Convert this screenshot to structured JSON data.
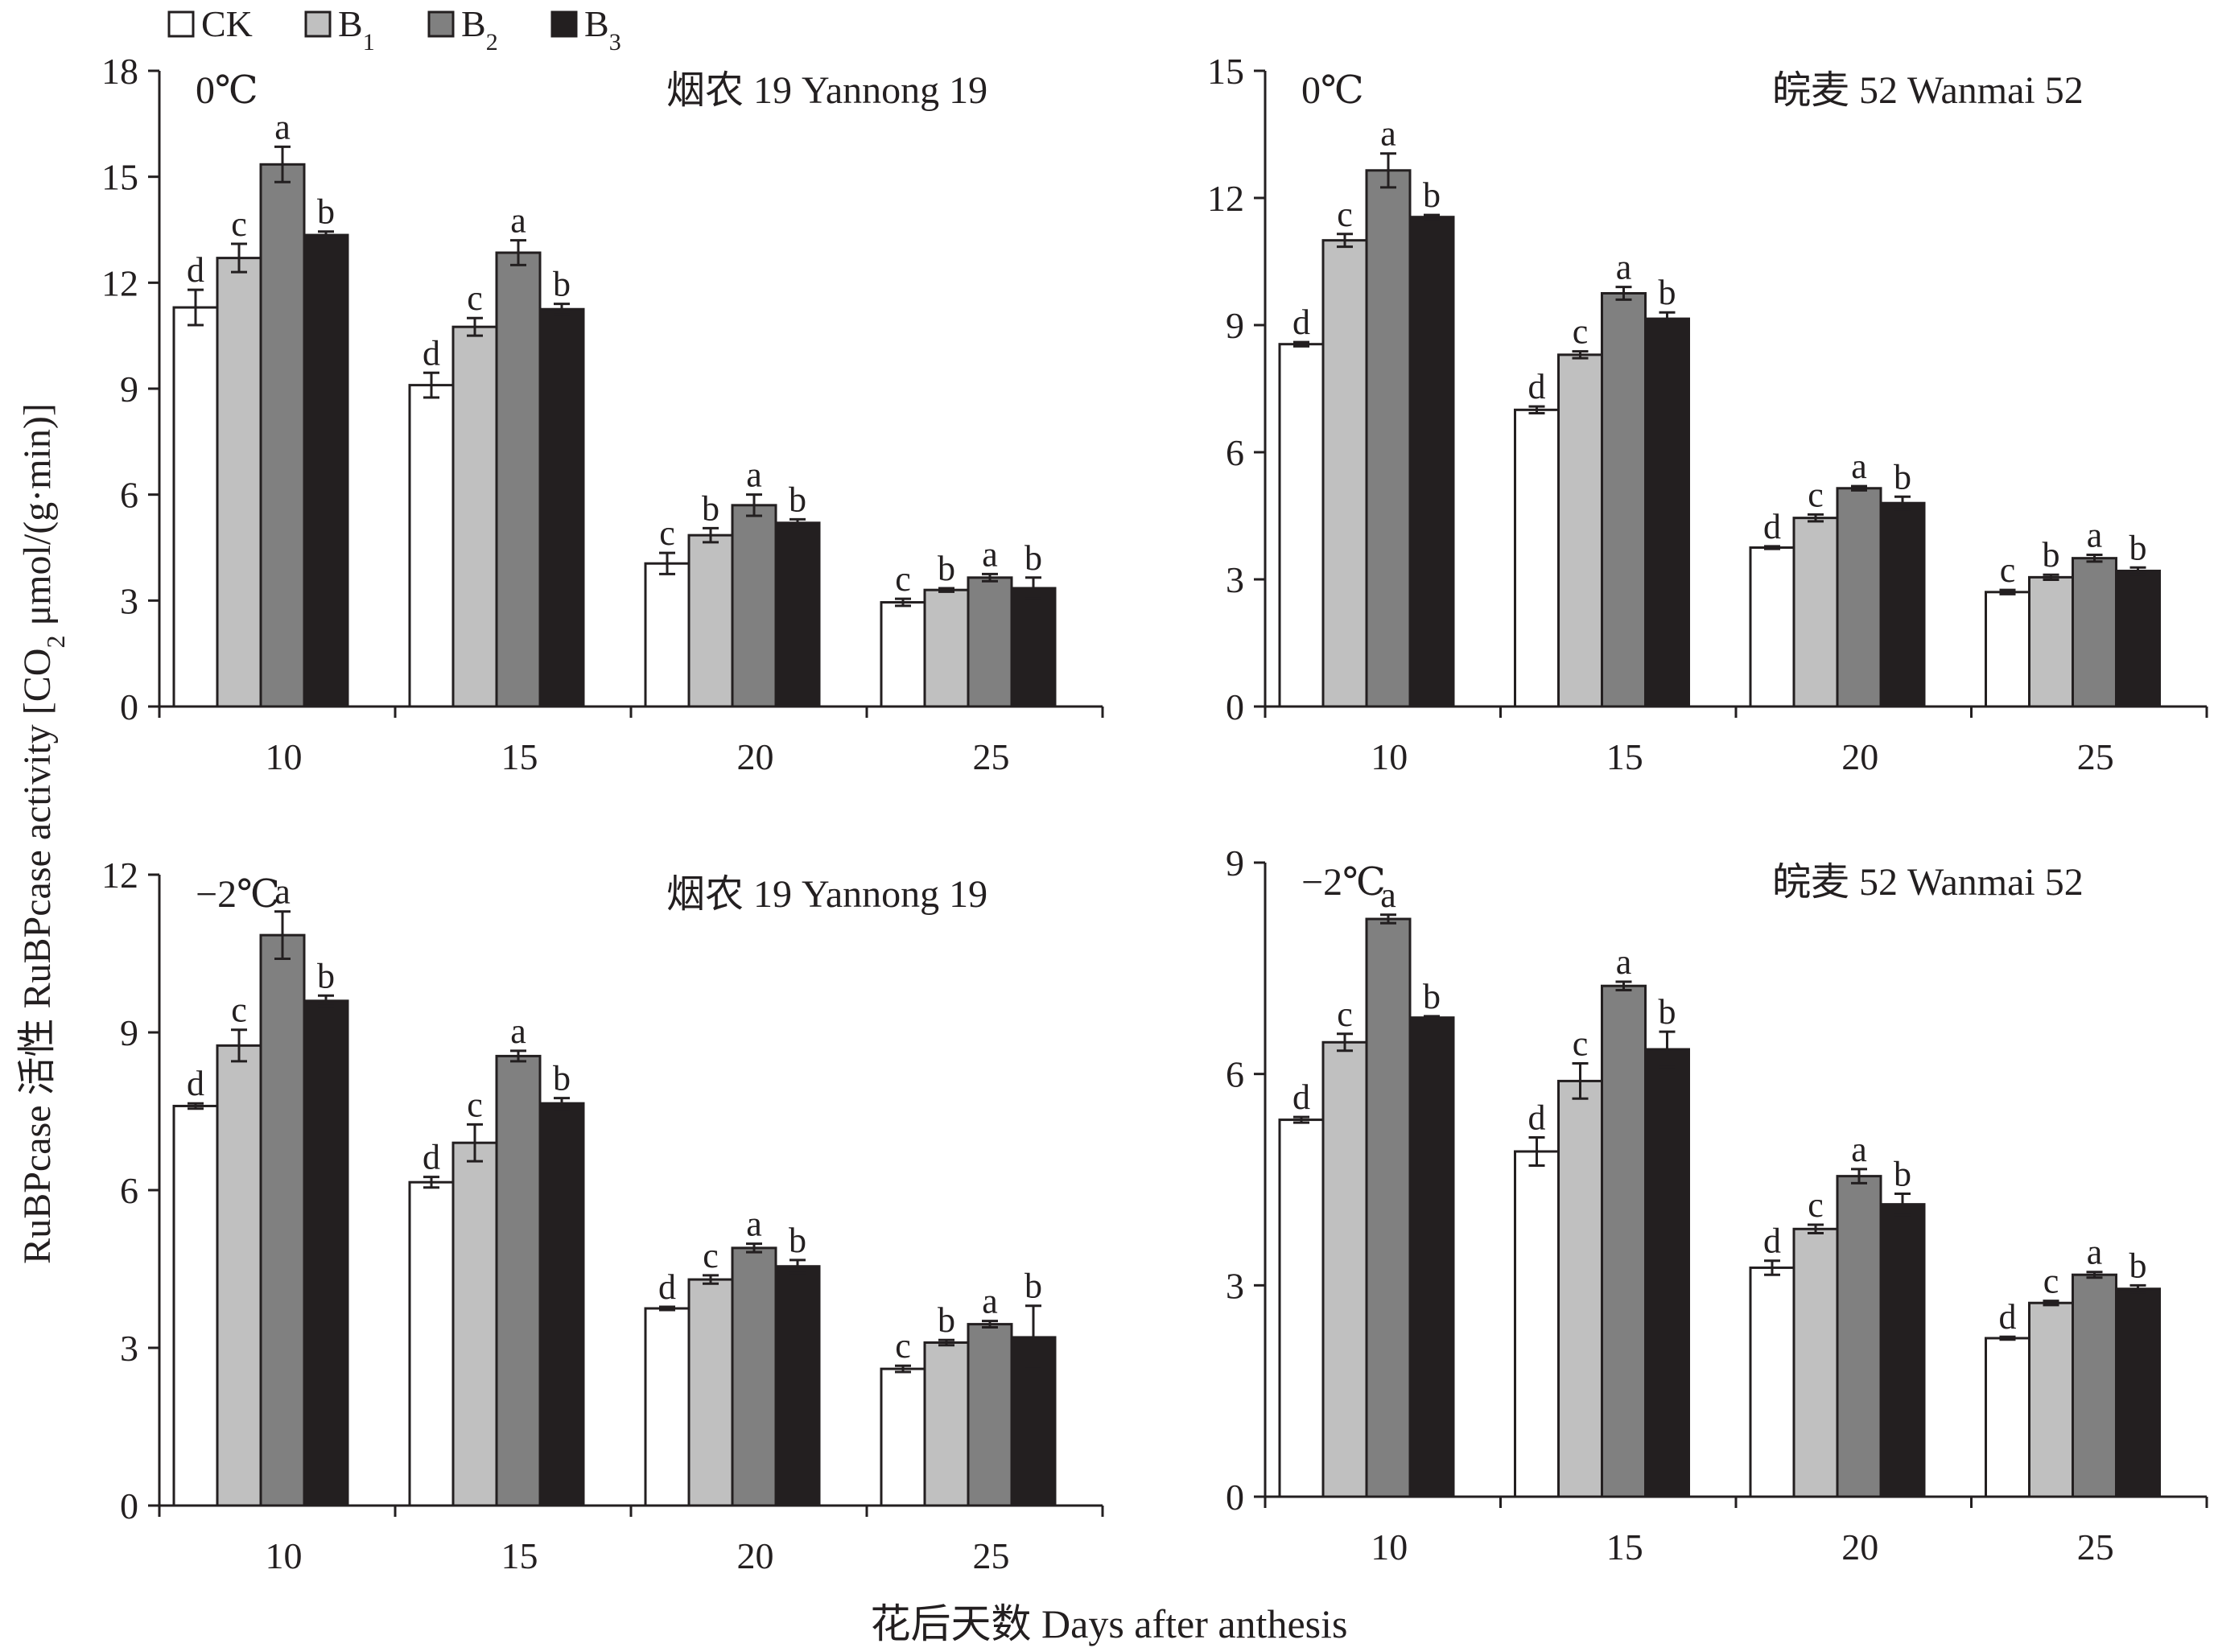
{
  "legend": {
    "items": [
      {
        "label": "CK",
        "sub": "",
        "color": "#ffffff"
      },
      {
        "label": "B",
        "sub": "1",
        "color": "#c0c0c0"
      },
      {
        "label": "B",
        "sub": "2",
        "color": "#808080"
      },
      {
        "label": "B",
        "sub": "3",
        "color": "#231f20"
      }
    ]
  },
  "ylabel_main": "RuBPcase 活性 RuBPcase activity [CO",
  "ylabel_sub": "2",
  "ylabel_tail": " μmol/(g·min)]",
  "xlabel": "花后天数 Days after anthesis",
  "colors": {
    "axis": "#231f20",
    "CK": "#ffffff",
    "B1": "#c0c0c0",
    "B2": "#808080",
    "B3": "#231f20"
  },
  "chart_data": [
    {
      "type": "bar",
      "panel": "top-left",
      "temperature": "0℃",
      "cultivar": "烟农 19 Yannong 19",
      "categories": [
        "10",
        "15",
        "20",
        "25"
      ],
      "ylim": [
        0,
        18
      ],
      "yticks": [
        "0",
        "3",
        "6",
        "9",
        "12",
        "15",
        "18"
      ],
      "series": [
        {
          "name": "CK",
          "values": [
            11.3,
            9.1,
            4.05,
            2.95
          ],
          "errors": [
            0.5,
            0.35,
            0.3,
            0.1
          ],
          "letters": [
            "d",
            "d",
            "c",
            "c"
          ]
        },
        {
          "name": "B1",
          "values": [
            12.7,
            10.75,
            4.85,
            3.3
          ],
          "errors": [
            0.4,
            0.25,
            0.2,
            0.05
          ],
          "letters": [
            "c",
            "c",
            "b",
            "b"
          ]
        },
        {
          "name": "B2",
          "values": [
            15.35,
            12.85,
            5.7,
            3.65
          ],
          "errors": [
            0.5,
            0.35,
            0.3,
            0.1
          ],
          "letters": [
            "a",
            "a",
            "a",
            "a"
          ]
        },
        {
          "name": "B3",
          "values": [
            13.35,
            11.25,
            5.2,
            3.35
          ],
          "errors": [
            0.1,
            0.15,
            0.1,
            0.3
          ],
          "letters": [
            "b",
            "b",
            "b",
            "b"
          ]
        }
      ]
    },
    {
      "type": "bar",
      "panel": "top-right",
      "temperature": "0℃",
      "cultivar": "皖麦 52 Wanmai 52",
      "categories": [
        "10",
        "15",
        "20",
        "25"
      ],
      "ylim": [
        0,
        15
      ],
      "yticks": [
        "0",
        "3",
        "6",
        "9",
        "12",
        "15"
      ],
      "series": [
        {
          "name": "CK",
          "values": [
            8.55,
            7.0,
            3.75,
            2.7
          ],
          "errors": [
            0.05,
            0.08,
            0.03,
            0.05
          ],
          "letters": [
            "d",
            "d",
            "d",
            "c"
          ]
        },
        {
          "name": "B1",
          "values": [
            11.0,
            8.3,
            4.45,
            3.05
          ],
          "errors": [
            0.15,
            0.08,
            0.08,
            0.06
          ],
          "letters": [
            "c",
            "c",
            "c",
            "b"
          ]
        },
        {
          "name": "B2",
          "values": [
            12.65,
            9.75,
            5.15,
            3.5
          ],
          "errors": [
            0.4,
            0.15,
            0.05,
            0.08
          ],
          "letters": [
            "a",
            "a",
            "a",
            "a"
          ]
        },
        {
          "name": "B3",
          "values": [
            11.55,
            9.15,
            4.8,
            3.2
          ],
          "errors": [
            0.05,
            0.15,
            0.15,
            0.08
          ],
          "letters": [
            "b",
            "b",
            "b",
            "b"
          ]
        }
      ]
    },
    {
      "type": "bar",
      "panel": "bottom-left",
      "temperature": "−2℃",
      "cultivar": "烟农 19 Yannong 19",
      "categories": [
        "10",
        "15",
        "20",
        "25"
      ],
      "ylim": [
        0,
        12
      ],
      "yticks": [
        "0",
        "3",
        "6",
        "9",
        "12"
      ],
      "series": [
        {
          "name": "CK",
          "values": [
            7.6,
            6.15,
            3.75,
            2.6
          ],
          "errors": [
            0.05,
            0.1,
            0.03,
            0.06
          ],
          "letters": [
            "d",
            "d",
            "d",
            "c"
          ]
        },
        {
          "name": "B1",
          "values": [
            8.75,
            6.9,
            4.3,
            3.1
          ],
          "errors": [
            0.3,
            0.35,
            0.08,
            0.05
          ],
          "letters": [
            "c",
            "c",
            "c",
            "b"
          ]
        },
        {
          "name": "B2",
          "values": [
            10.85,
            8.55,
            4.9,
            3.45
          ],
          "errors": [
            0.45,
            0.1,
            0.08,
            0.06
          ],
          "letters": [
            "a",
            "a",
            "a",
            "a"
          ]
        },
        {
          "name": "B3",
          "values": [
            9.6,
            7.65,
            4.55,
            3.2
          ],
          "errors": [
            0.1,
            0.1,
            0.12,
            0.6
          ],
          "letters": [
            "b",
            "b",
            "b",
            "b"
          ]
        }
      ]
    },
    {
      "type": "bar",
      "panel": "bottom-right",
      "temperature": "−2℃",
      "cultivar": "皖麦 52 Wanmai 52",
      "categories": [
        "10",
        "15",
        "20",
        "25"
      ],
      "ylim": [
        0,
        9
      ],
      "yticks": [
        "0",
        "3",
        "6",
        "9"
      ],
      "series": [
        {
          "name": "CK",
          "values": [
            5.35,
            4.9,
            3.25,
            2.25
          ],
          "errors": [
            0.04,
            0.2,
            0.1,
            0.02
          ],
          "letters": [
            "d",
            "d",
            "d",
            "d"
          ]
        },
        {
          "name": "B1",
          "values": [
            6.45,
            5.9,
            3.8,
            2.75
          ],
          "errors": [
            0.12,
            0.25,
            0.06,
            0.03
          ],
          "letters": [
            "c",
            "c",
            "c",
            "c"
          ]
        },
        {
          "name": "B2",
          "values": [
            8.2,
            7.25,
            4.55,
            3.15
          ],
          "errors": [
            0.06,
            0.06,
            0.1,
            0.04
          ],
          "letters": [
            "a",
            "a",
            "a",
            "a"
          ]
        },
        {
          "name": "B3",
          "values": [
            6.8,
            6.35,
            4.15,
            2.95
          ],
          "errors": [
            0.02,
            0.25,
            0.15,
            0.05
          ],
          "letters": [
            "b",
            "b",
            "b",
            "b"
          ]
        }
      ]
    }
  ]
}
